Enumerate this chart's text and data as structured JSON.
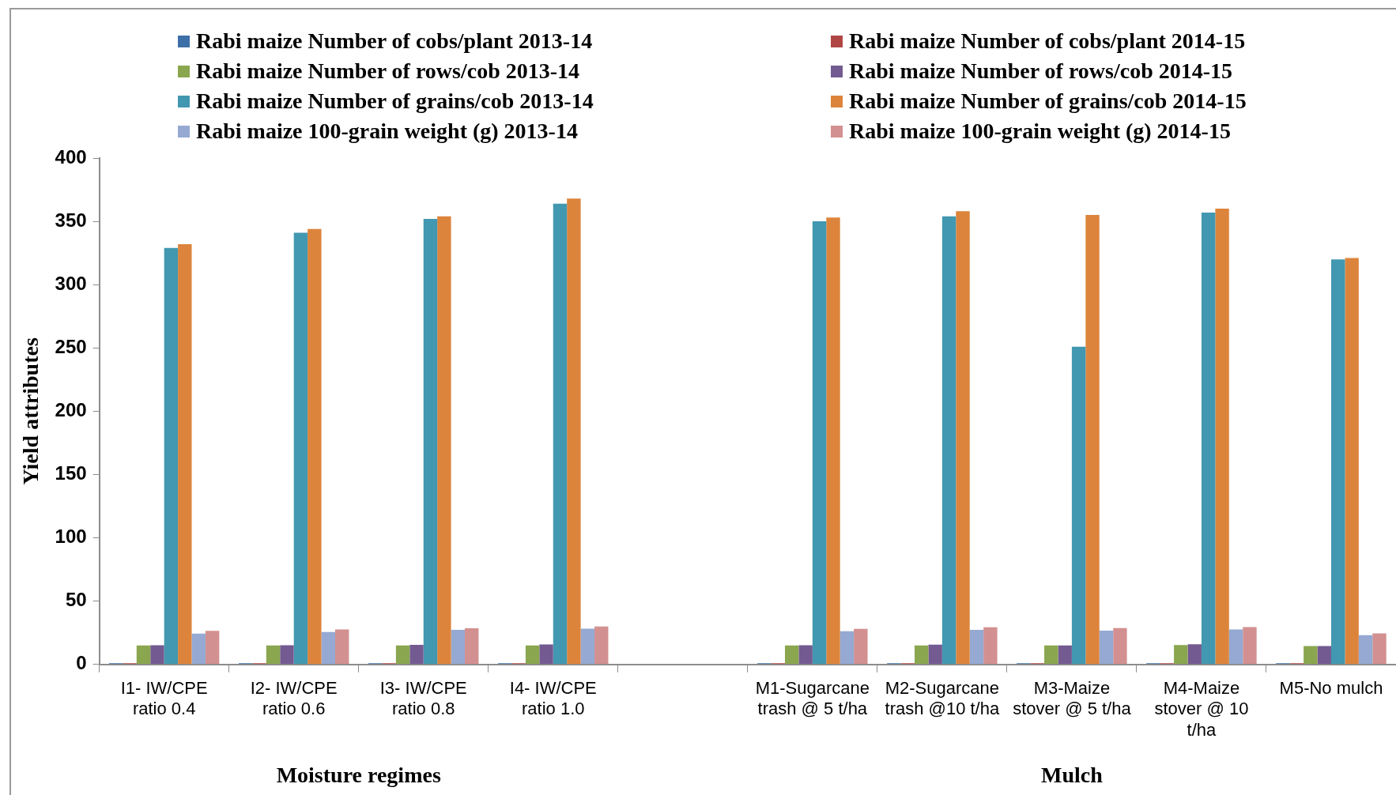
{
  "chart_data": {
    "type": "bar",
    "ylabel": "Yield attributes",
    "categories": [
      "I1- IW/CPE ratio 0.4",
      "I2- IW/CPE ratio 0.6",
      "I3- IW/CPE ratio 0.8",
      "I4- IW/CPE ratio 1.0",
      null,
      "M1-Sugarcane trash @ 5 t/ha",
      "M2-Sugarcane trash @10 t/ha",
      "M3-Maize stover @ 5 t/ha",
      "M4-Maize stover @ 10 t/ha",
      "M5-No mulch"
    ],
    "series": [
      {
        "name": "Rabi maize Number of cobs/plant 2013-14",
        "color": "#3d6fa8",
        "values": [
          1,
          1,
          1,
          1,
          null,
          1,
          1,
          1,
          1,
          1
        ]
      },
      {
        "name": "Rabi maize Number of cobs/plant 2014-15",
        "color": "#b04643",
        "values": [
          1,
          1,
          1,
          1,
          null,
          1,
          1,
          1,
          1,
          1
        ]
      },
      {
        "name": "Rabi maize Number of rows/cob 2013-14",
        "color": "#8aa64f",
        "values": [
          15,
          15,
          15,
          15,
          null,
          15,
          15,
          15,
          15.3,
          14.6
        ]
      },
      {
        "name": "Rabi maize Number of rows/cob 2014-15",
        "color": "#735a91",
        "values": [
          15.2,
          15.2,
          15.5,
          15.8,
          null,
          15.2,
          15.6,
          15,
          16,
          14.6
        ]
      },
      {
        "name": "Rabi maize Number of grains/cob 2013-14",
        "color": "#4298b0",
        "values": [
          329,
          341,
          352,
          364,
          null,
          350,
          354,
          251,
          357,
          320
        ]
      },
      {
        "name": "Rabi maize Number of grains/cob 2014-15",
        "color": "#dd843c",
        "values": [
          332,
          344,
          354,
          368,
          null,
          353,
          358,
          355,
          360,
          321
        ]
      },
      {
        "name": "Rabi maize 100-grain weight (g) 2013-14",
        "color": "#95a9d2",
        "values": [
          24.4,
          25.6,
          27.4,
          28.3,
          null,
          26.3,
          27.4,
          26.7,
          27.7,
          23.2
        ]
      },
      {
        "name": "Rabi maize 100-grain weight (g) 2014-15",
        "color": "#d39090",
        "values": [
          26.5,
          27.7,
          28.6,
          30,
          null,
          28.1,
          29.4,
          28.7,
          29.6,
          24.6
        ]
      }
    ],
    "ylim": [
      0,
      400
    ],
    "yticks": [
      0,
      50,
      100,
      150,
      200,
      250,
      300,
      350,
      400
    ],
    "grid": false,
    "legend": "top",
    "annotations": [
      "Moisture regimes",
      "Mulch"
    ]
  }
}
